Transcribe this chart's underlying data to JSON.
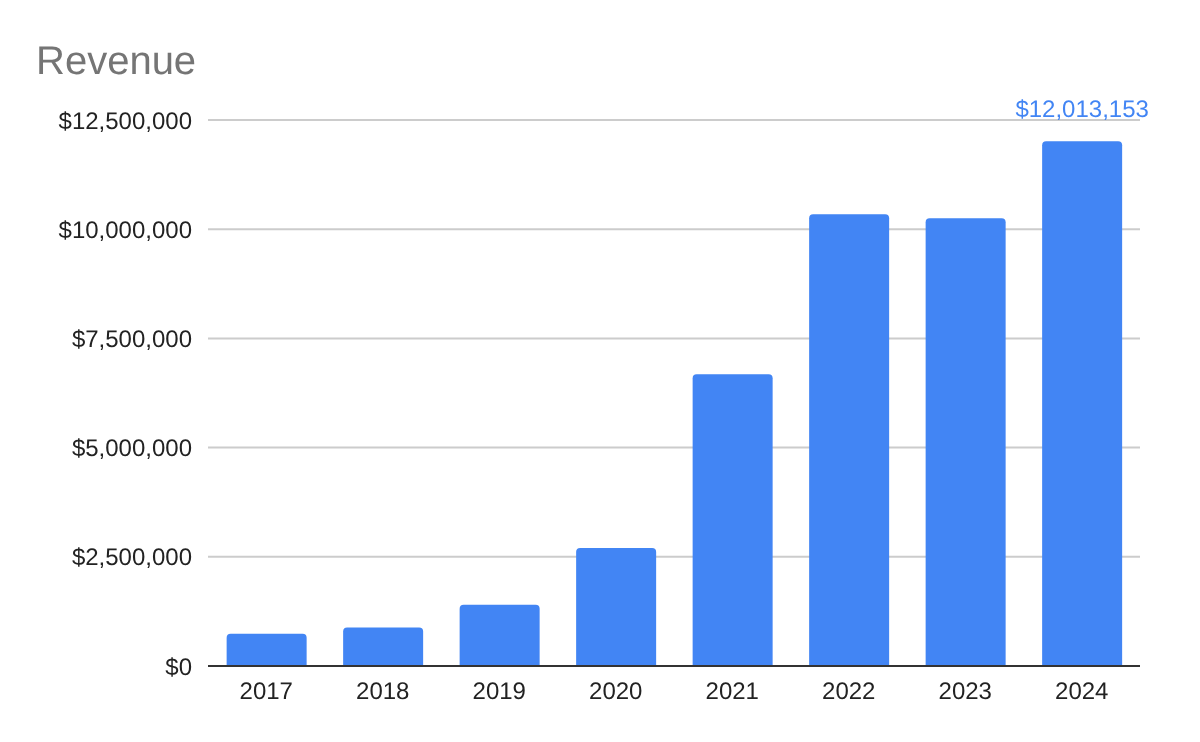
{
  "chart_data": {
    "type": "bar",
    "title": "Revenue",
    "categories": [
      "2017",
      "2018",
      "2019",
      "2020",
      "2021",
      "2022",
      "2023",
      "2024"
    ],
    "values": [
      740000,
      880000,
      1400000,
      2700000,
      6680000,
      10340000,
      10250000,
      12013153
    ],
    "value_labels": [
      null,
      null,
      null,
      null,
      null,
      null,
      null,
      "$12,013,153"
    ],
    "color": "#4285f4",
    "ylim": [
      0,
      12500000
    ],
    "yticks": [
      {
        "value": 0,
        "label": "$0"
      },
      {
        "value": 2500000,
        "label": "$2,500,000"
      },
      {
        "value": 5000000,
        "label": "$5,000,000"
      },
      {
        "value": 7500000,
        "label": "$7,500,000"
      },
      {
        "value": 10000000,
        "label": "$10,000,000"
      },
      {
        "value": 12500000,
        "label": "$12,500,000"
      }
    ],
    "grid": "y"
  }
}
